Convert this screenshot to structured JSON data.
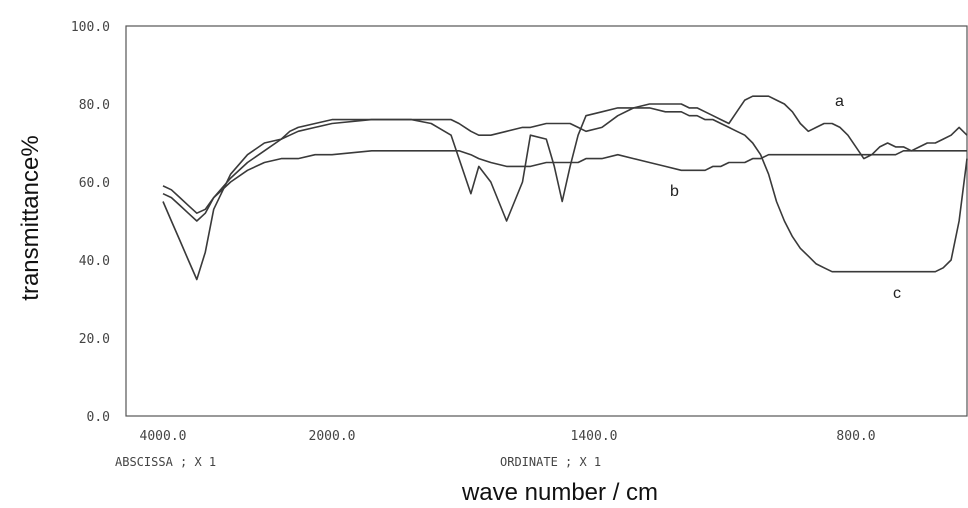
{
  "chart_data": {
    "type": "line",
    "title": "",
    "xlabel": "wave number / cm",
    "ylabel": "transmittance%",
    "ylim": [
      0,
      100
    ],
    "y_ticks": [
      "100.0",
      "80.0",
      "60.0",
      "40.0",
      "20.0",
      "0.0"
    ],
    "x_ticks": [
      "4000.0",
      "2000.0",
      "1400.0",
      "800.0"
    ],
    "x_axis_note": "x axis is piecewise: 4000-2000 compressed, 2000-400 expanded",
    "footer": {
      "abscissa": "ABSCISSA ;   X   1",
      "ordinate": "ORDINATE ;   X   1"
    },
    "grid": false,
    "series": [
      {
        "name": "a",
        "x": [
          4000,
          3900,
          3800,
          3700,
          3600,
          3500,
          3400,
          3200,
          3000,
          2800,
          2600,
          2500,
          2400,
          2200,
          2000,
          1900,
          1800,
          1750,
          1700,
          1680,
          1650,
          1630,
          1600,
          1560,
          1520,
          1500,
          1460,
          1440,
          1420,
          1400,
          1380,
          1360,
          1320,
          1280,
          1240,
          1200,
          1160,
          1120,
          1100,
          1080,
          1060,
          1040,
          1020,
          1000,
          980,
          960,
          940,
          920,
          900,
          880,
          860,
          840,
          820,
          800,
          780,
          760,
          740,
          720,
          700,
          680,
          660,
          640,
          620,
          600,
          580,
          560,
          540,
          520,
          500,
          480,
          460,
          440,
          420,
          400
        ],
        "y": [
          59,
          58,
          56,
          54,
          52,
          53,
          56,
          61,
          65,
          68,
          71,
          73,
          74,
          75,
          76,
          76,
          76,
          76,
          76,
          75,
          73,
          72,
          72,
          73,
          74,
          74,
          75,
          75,
          75,
          75,
          74,
          73,
          74,
          77,
          79,
          80,
          80,
          80,
          79,
          79,
          78,
          77,
          76,
          75,
          78,
          81,
          82,
          82,
          82,
          81,
          80,
          78,
          75,
          73,
          74,
          75,
          75,
          74,
          72,
          69,
          66,
          67,
          69,
          70,
          69,
          69,
          68,
          69,
          70,
          70,
          71,
          72,
          74,
          72
        ]
      },
      {
        "name": "b",
        "x": [
          4000,
          3900,
          3800,
          3700,
          3600,
          3500,
          3400,
          3200,
          3000,
          2800,
          2600,
          2500,
          2400,
          2200,
          2000,
          1900,
          1800,
          1750,
          1700,
          1680,
          1650,
          1630,
          1600,
          1560,
          1520,
          1500,
          1460,
          1440,
          1420,
          1400,
          1380,
          1360,
          1320,
          1280,
          1240,
          1200,
          1160,
          1120,
          1100,
          1080,
          1060,
          1040,
          1020,
          1000,
          980,
          960,
          940,
          920,
          900,
          880,
          860,
          840,
          820,
          800,
          780,
          760,
          740,
          720,
          700,
          680,
          660,
          640,
          620,
          600,
          580,
          560,
          540,
          520,
          500,
          480,
          460,
          440,
          420,
          400
        ],
        "y": [
          57,
          56,
          54,
          52,
          50,
          52,
          56,
          60,
          63,
          65,
          66,
          66,
          66,
          67,
          67,
          68,
          68,
          68,
          68,
          68,
          67,
          66,
          65,
          64,
          64,
          64,
          65,
          65,
          65,
          65,
          65,
          66,
          66,
          67,
          66,
          65,
          64,
          63,
          63,
          63,
          63,
          64,
          64,
          65,
          65,
          65,
          66,
          66,
          67,
          67,
          67,
          67,
          67,
          67,
          67,
          67,
          67,
          67,
          67,
          67,
          67,
          67,
          67,
          67,
          67,
          68,
          68,
          68,
          68,
          68,
          68,
          68,
          68,
          68
        ]
      },
      {
        "name": "c",
        "x": [
          4000,
          3900,
          3800,
          3700,
          3600,
          3500,
          3400,
          3200,
          3000,
          2800,
          2600,
          2500,
          2400,
          2200,
          2000,
          1900,
          1800,
          1750,
          1700,
          1680,
          1650,
          1630,
          1600,
          1560,
          1520,
          1500,
          1460,
          1440,
          1420,
          1400,
          1380,
          1360,
          1320,
          1280,
          1240,
          1200,
          1160,
          1120,
          1100,
          1080,
          1060,
          1040,
          1020,
          1000,
          980,
          960,
          940,
          920,
          900,
          880,
          860,
          840,
          820,
          800,
          780,
          760,
          740,
          720,
          700,
          680,
          660,
          640,
          620,
          600,
          580,
          560,
          540,
          520,
          500,
          480,
          460,
          440,
          420,
          400
        ],
        "y": [
          55,
          50,
          45,
          40,
          35,
          42,
          53,
          62,
          67,
          70,
          71,
          72,
          73,
          74,
          75,
          76,
          76,
          75,
          72,
          66,
          57,
          64,
          60,
          50,
          60,
          72,
          71,
          64,
          55,
          64,
          72,
          77,
          78,
          79,
          79,
          79,
          78,
          78,
          77,
          77,
          76,
          76,
          75,
          74,
          73,
          72,
          70,
          67,
          62,
          55,
          50,
          46,
          43,
          41,
          39,
          38,
          37,
          37,
          37,
          37,
          37,
          37,
          37,
          37,
          37,
          37,
          37,
          37,
          37,
          37,
          38,
          40,
          50,
          66
        ]
      }
    ],
    "curve_labels": [
      "a",
      "b",
      "c"
    ]
  }
}
